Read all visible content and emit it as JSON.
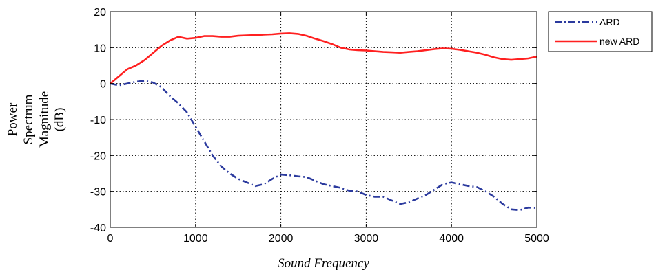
{
  "chart_data": {
    "type": "line",
    "title": "",
    "xlabel": "Sound Frequency",
    "ylabel": [
      "Power",
      "Spectrum",
      "Magnitude",
      "(dB)"
    ],
    "xlim": [
      0,
      5000
    ],
    "ylim": [
      -40,
      20
    ],
    "xticks": [
      0,
      1000,
      2000,
      3000,
      4000,
      5000
    ],
    "yticks": [
      20,
      10,
      0,
      -10,
      -20,
      -30,
      -40
    ],
    "grid": true,
    "legend_position": "outside-top-right",
    "series": [
      {
        "name": "ARD",
        "color": "#2b3a9e",
        "dash": "dash-dot",
        "x": [
          0,
          100,
          200,
          300,
          400,
          500,
          600,
          700,
          800,
          900,
          1000,
          1100,
          1200,
          1300,
          1400,
          1500,
          1600,
          1700,
          1800,
          1900,
          2000,
          2100,
          2200,
          2300,
          2400,
          2500,
          2600,
          2700,
          2800,
          2900,
          3000,
          3100,
          3200,
          3300,
          3400,
          3500,
          3600,
          3700,
          3800,
          3900,
          4000,
          4100,
          4200,
          4300,
          4400,
          4500,
          4600,
          4700,
          4800,
          4900,
          5000
        ],
        "y": [
          0,
          -0.5,
          0,
          0.5,
          0.8,
          0.3,
          -1,
          -3.5,
          -5.5,
          -8,
          -12,
          -16,
          -20,
          -23,
          -25,
          -26.5,
          -27.5,
          -28.5,
          -28,
          -26.5,
          -25.3,
          -25.5,
          -25.8,
          -26,
          -27,
          -28,
          -28.5,
          -29,
          -29.8,
          -30,
          -31,
          -31.5,
          -31.5,
          -32.5,
          -33.5,
          -33,
          -32,
          -31,
          -29.5,
          -28,
          -27.5,
          -28,
          -28.5,
          -28.8,
          -30,
          -31.5,
          -33.5,
          -35,
          -35.2,
          -34.5,
          -34.6
        ]
      },
      {
        "name": "new ARD",
        "color": "#ff2020",
        "dash": "solid",
        "x": [
          0,
          100,
          200,
          300,
          400,
          500,
          600,
          700,
          800,
          900,
          1000,
          1100,
          1200,
          1300,
          1400,
          1500,
          1600,
          1700,
          1800,
          1900,
          2000,
          2100,
          2200,
          2300,
          2400,
          2500,
          2600,
          2700,
          2800,
          2900,
          3000,
          3100,
          3200,
          3300,
          3400,
          3500,
          3600,
          3700,
          3800,
          3900,
          4000,
          4100,
          4200,
          4300,
          4400,
          4500,
          4600,
          4700,
          4800,
          4900,
          5000
        ],
        "y": [
          0,
          2,
          4,
          5,
          6.5,
          8.5,
          10.5,
          12,
          13,
          12.5,
          12.7,
          13.2,
          13.2,
          13,
          13,
          13.3,
          13.4,
          13.5,
          13.6,
          13.7,
          13.9,
          14,
          13.8,
          13.3,
          12.5,
          11.8,
          11,
          10,
          9.5,
          9.3,
          9.2,
          9,
          8.8,
          8.7,
          8.6,
          8.8,
          9,
          9.3,
          9.6,
          9.8,
          9.7,
          9.4,
          9,
          8.6,
          8,
          7.3,
          6.8,
          6.6,
          6.8,
          7,
          7.5
        ]
      }
    ]
  }
}
